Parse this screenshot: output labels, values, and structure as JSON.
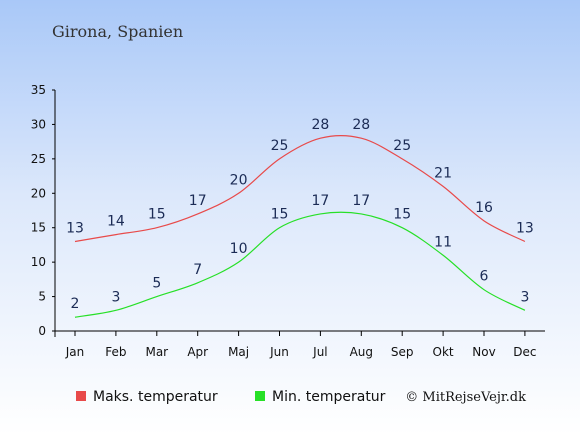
{
  "chart_data": {
    "type": "line",
    "title": "Girona, Spanien",
    "categories": [
      "Jan",
      "Feb",
      "Mar",
      "Apr",
      "Maj",
      "Jun",
      "Jul",
      "Aug",
      "Sep",
      "Okt",
      "Nov",
      "Dec"
    ],
    "series": [
      {
        "name": "Maks. temperatur",
        "color": "#e84a4a",
        "values": [
          13,
          14,
          15,
          17,
          20,
          25,
          28,
          28,
          25,
          21,
          16,
          13
        ]
      },
      {
        "name": "Min. temperatur",
        "color": "#27e027",
        "values": [
          2,
          3,
          5,
          7,
          10,
          15,
          17,
          17,
          15,
          11,
          6,
          3
        ]
      }
    ],
    "ylim": [
      0,
      35
    ],
    "yticks": [
      0,
      5,
      10,
      15,
      20,
      25,
      30,
      35
    ],
    "grid": false,
    "legend_position": "bottom"
  },
  "credit": "© MitRejseVejr.dk"
}
